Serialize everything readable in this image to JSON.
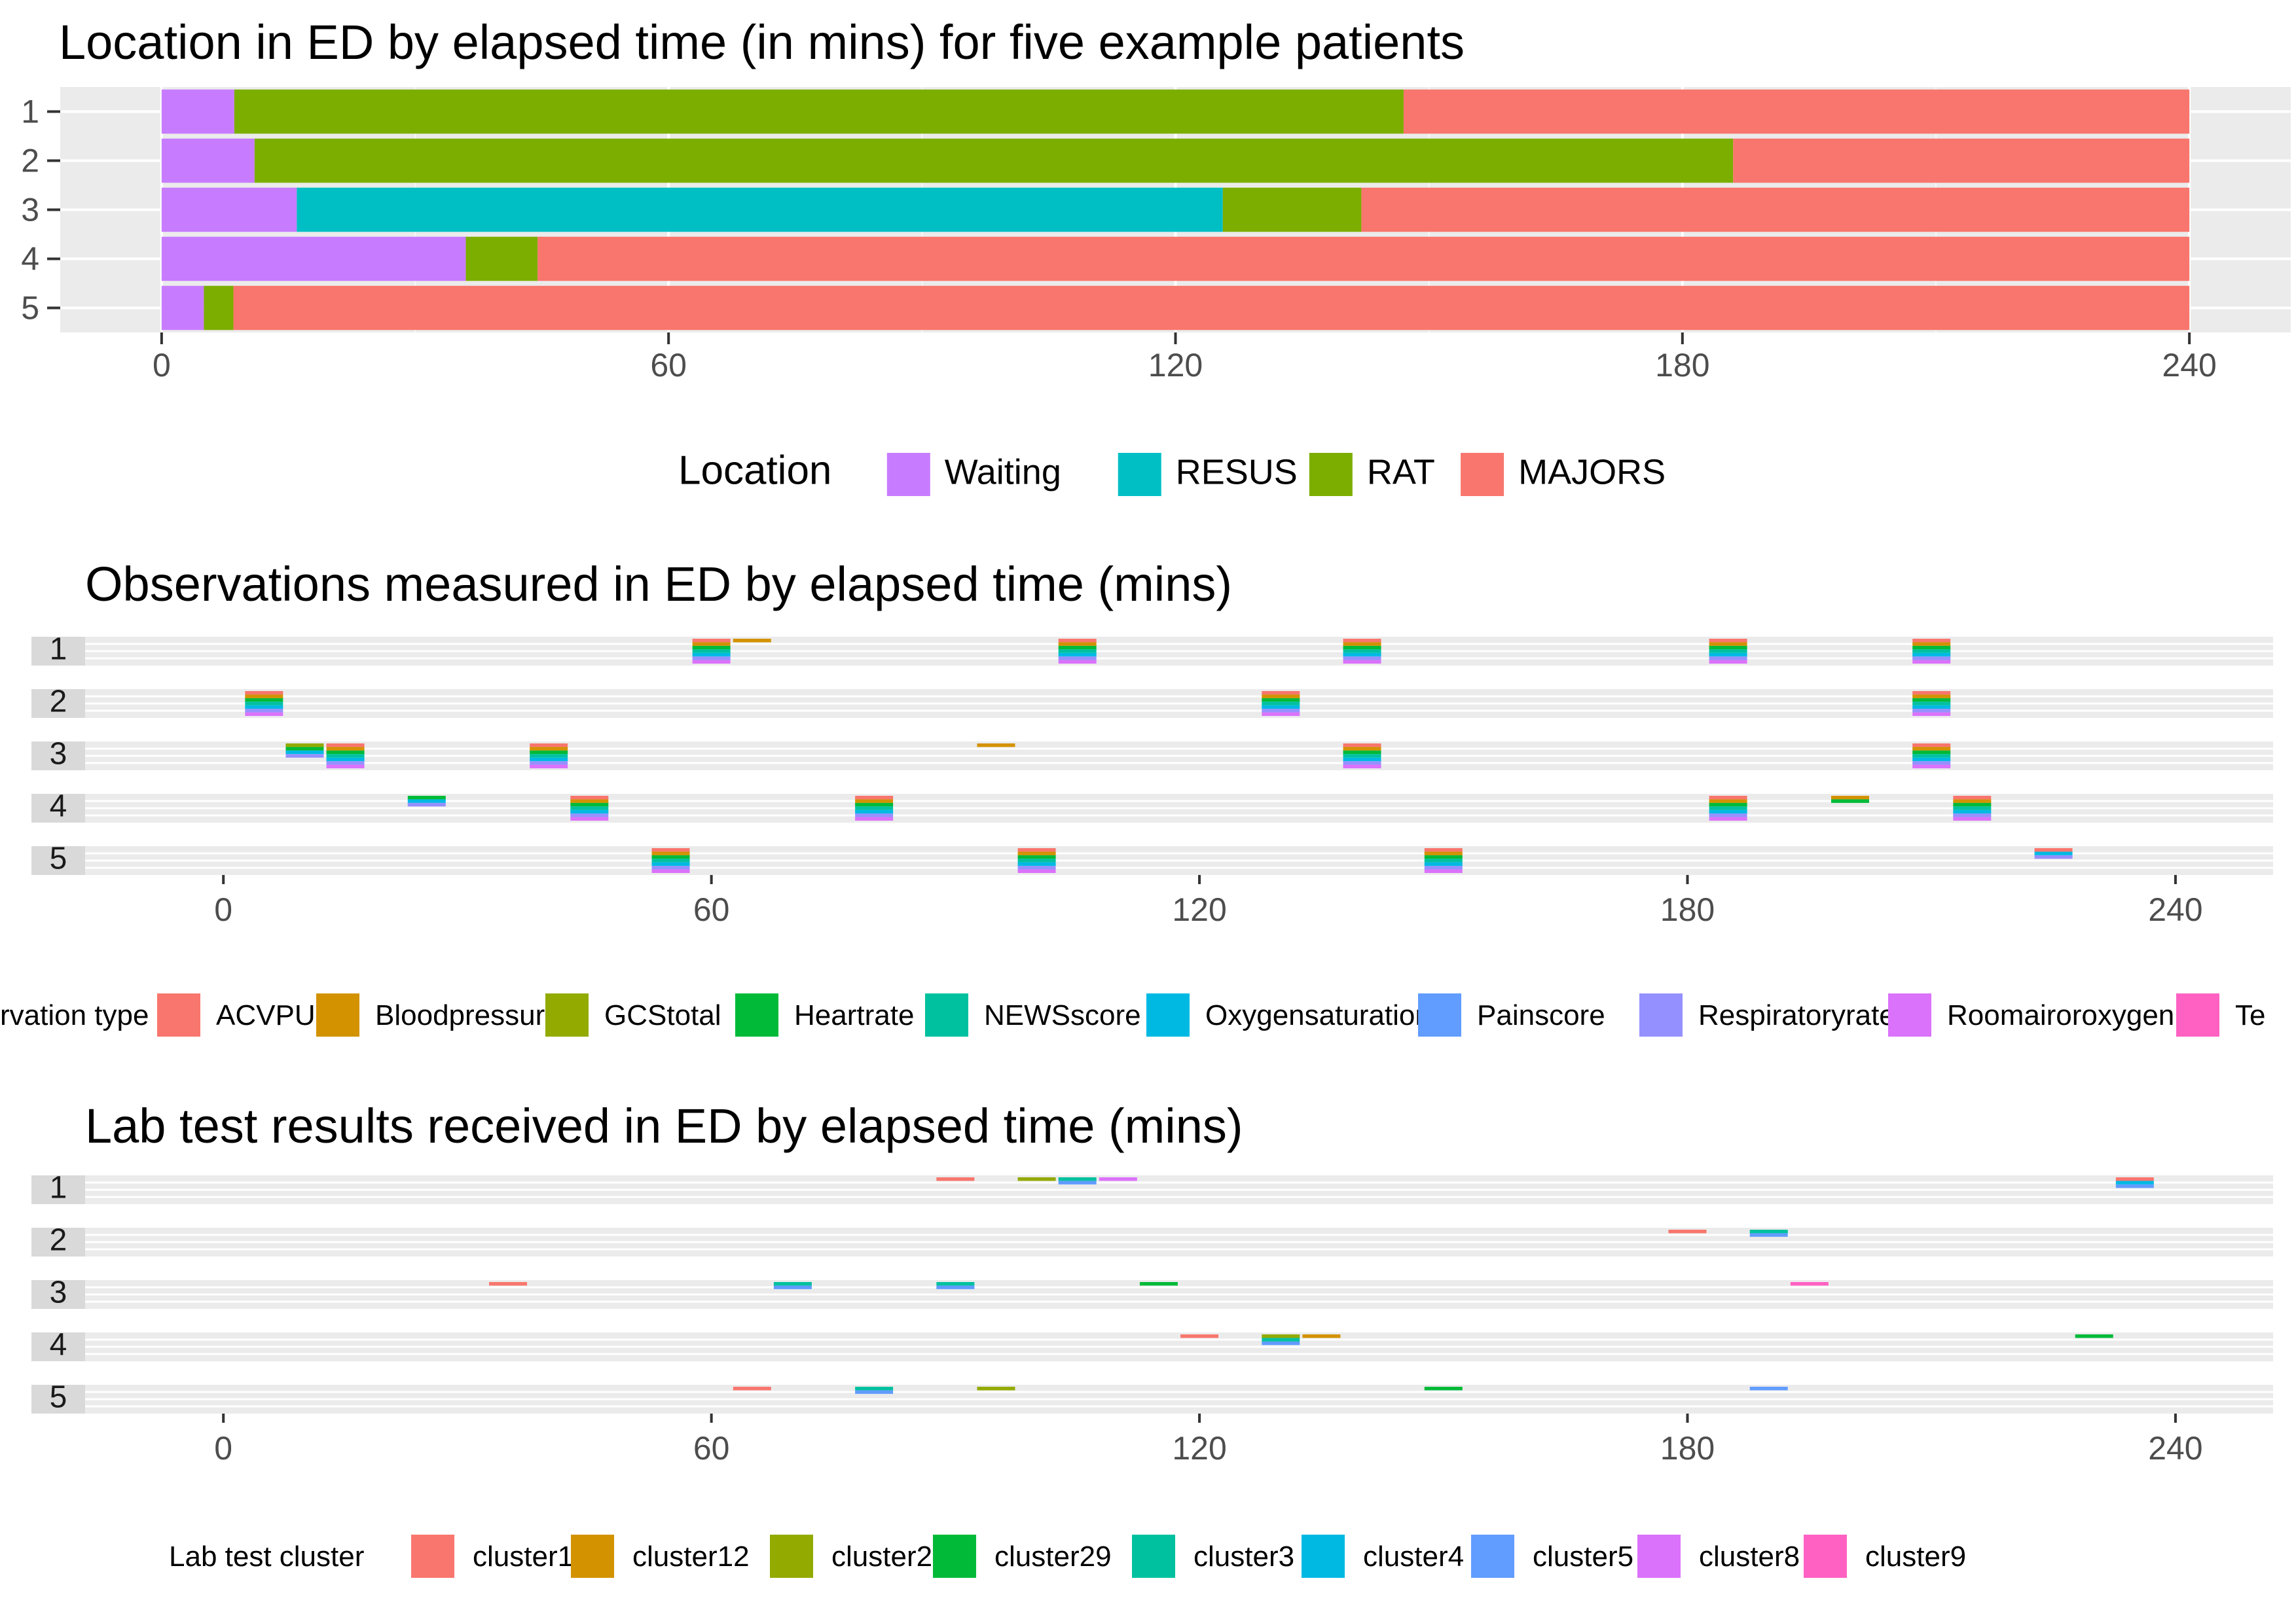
{
  "chart_data": [
    {
      "type": "bar",
      "subtype": "horizontal-stacked-timeline",
      "title": "Location in ED by elapsed time (in mins) for five example patients",
      "xlabel": "",
      "ylabel": "",
      "xlim": [
        -12,
        252
      ],
      "xticks": [
        0,
        60,
        120,
        180,
        240
      ],
      "categories": [
        "1",
        "2",
        "3",
        "4",
        "5"
      ],
      "legend": {
        "title": "Location",
        "position": "bottom",
        "items": [
          {
            "name": "Waiting",
            "color": "#C77CFF"
          },
          {
            "name": "RESUS",
            "color": "#00BFC4"
          },
          {
            "name": "RAT",
            "color": "#7CAE00"
          },
          {
            "name": "MAJORS",
            "color": "#F8766D"
          }
        ]
      },
      "patients": [
        {
          "id": "1",
          "segments": [
            {
              "location": "Waiting",
              "start": 0,
              "end": 8.6
            },
            {
              "location": "RAT",
              "start": 8.6,
              "end": 147
            },
            {
              "location": "MAJORS",
              "start": 147,
              "end": 240
            }
          ]
        },
        {
          "id": "2",
          "segments": [
            {
              "location": "Waiting",
              "start": 0,
              "end": 11
            },
            {
              "location": "RAT",
              "start": 11,
              "end": 186
            },
            {
              "location": "MAJORS",
              "start": 186,
              "end": 240
            }
          ]
        },
        {
          "id": "3",
          "segments": [
            {
              "location": "Waiting",
              "start": 0,
              "end": 16
            },
            {
              "location": "RESUS",
              "start": 16,
              "end": 125.6
            },
            {
              "location": "RAT",
              "start": 125.6,
              "end": 142
            },
            {
              "location": "MAJORS",
              "start": 142,
              "end": 240
            }
          ]
        },
        {
          "id": "4",
          "segments": [
            {
              "location": "Waiting",
              "start": 0,
              "end": 36
            },
            {
              "location": "RAT",
              "start": 36,
              "end": 44.5
            },
            {
              "location": "MAJORS",
              "start": 44.5,
              "end": 240
            }
          ]
        },
        {
          "id": "5",
          "segments": [
            {
              "location": "Waiting",
              "start": 0,
              "end": 5
            },
            {
              "location": "RAT",
              "start": 5,
              "end": 8.5
            },
            {
              "location": "MAJORS",
              "start": 8.5,
              "end": 240
            }
          ]
        }
      ]
    },
    {
      "type": "scatter",
      "subtype": "faceted-stacked-event-tiles",
      "title": "Observations measured in ED by elapsed time (mins)",
      "xlabel": "",
      "ylabel": "",
      "xlim": [
        -17,
        252
      ],
      "xticks": [
        0,
        60,
        120,
        180,
        240
      ],
      "facets": [
        "1",
        "2",
        "3",
        "4",
        "5"
      ],
      "legend": {
        "title": "Observation type",
        "title_visible_text": "rvation type",
        "position": "bottom",
        "items": [
          {
            "name": "ACVPU",
            "color": "#F8766D"
          },
          {
            "name": "Bloodpressure",
            "color": "#D39200"
          },
          {
            "name": "GCStotal",
            "color": "#93AA00"
          },
          {
            "name": "Heartrate",
            "color": "#00BA38"
          },
          {
            "name": "NEWSscore",
            "color": "#00C19F"
          },
          {
            "name": "Oxygensaturation",
            "color": "#00B9E3"
          },
          {
            "name": "Painscore",
            "color": "#619CFF"
          },
          {
            "name": "Respiratoryrate",
            "color": "#9590FF"
          },
          {
            "name": "Roomairoroxygen",
            "color": "#DB72FB"
          },
          {
            "name": "Te",
            "color": "#FF61C3"
          }
        ]
      },
      "events": [
        {
          "patient": "1",
          "time": 60,
          "types": [
            "ACVPU",
            "Bloodpressure",
            "Heartrate",
            "NEWSscore",
            "Oxygensaturation",
            "Respiratoryrate",
            "Roomairoroxygen"
          ]
        },
        {
          "patient": "1",
          "time": 65,
          "types": [
            "Bloodpressure"
          ]
        },
        {
          "patient": "1",
          "time": 105,
          "types": [
            "ACVPU",
            "Bloodpressure",
            "Heartrate",
            "NEWSscore",
            "Oxygensaturation",
            "Respiratoryrate",
            "Roomairoroxygen"
          ]
        },
        {
          "patient": "1",
          "time": 140,
          "types": [
            "ACVPU",
            "Bloodpressure",
            "Heartrate",
            "NEWSscore",
            "Oxygensaturation",
            "Respiratoryrate",
            "Roomairoroxygen"
          ]
        },
        {
          "patient": "1",
          "time": 185,
          "types": [
            "ACVPU",
            "Bloodpressure",
            "Heartrate",
            "NEWSscore",
            "Oxygensaturation",
            "Respiratoryrate",
            "Roomairoroxygen"
          ]
        },
        {
          "patient": "1",
          "time": 210,
          "types": [
            "ACVPU",
            "Bloodpressure",
            "Heartrate",
            "NEWSscore",
            "Oxygensaturation",
            "Respiratoryrate",
            "Roomairoroxygen"
          ]
        },
        {
          "patient": "2",
          "time": 5,
          "types": [
            "ACVPU",
            "Bloodpressure",
            "Heartrate",
            "NEWSscore",
            "Oxygensaturation",
            "Respiratoryrate",
            "Roomairoroxygen"
          ]
        },
        {
          "patient": "2",
          "time": 130,
          "types": [
            "ACVPU",
            "Bloodpressure",
            "Heartrate",
            "NEWSscore",
            "Oxygensaturation",
            "Respiratoryrate",
            "Roomairoroxygen"
          ]
        },
        {
          "patient": "2",
          "time": 210,
          "types": [
            "ACVPU",
            "Bloodpressure",
            "Heartrate",
            "NEWSscore",
            "Oxygensaturation",
            "Respiratoryrate",
            "Roomairoroxygen"
          ]
        },
        {
          "patient": "3",
          "time": 10,
          "types": [
            "GCStotal",
            "Heartrate",
            "Oxygensaturation",
            "Respiratoryrate"
          ]
        },
        {
          "patient": "3",
          "time": 15,
          "types": [
            "ACVPU",
            "Bloodpressure",
            "Heartrate",
            "NEWSscore",
            "Oxygensaturation",
            "Respiratoryrate",
            "Roomairoroxygen"
          ]
        },
        {
          "patient": "3",
          "time": 40,
          "types": [
            "ACVPU",
            "Bloodpressure",
            "Heartrate",
            "NEWSscore",
            "Oxygensaturation",
            "Respiratoryrate",
            "Roomairoroxygen"
          ]
        },
        {
          "patient": "3",
          "time": 95,
          "types": [
            "Bloodpressure"
          ]
        },
        {
          "patient": "3",
          "time": 140,
          "types": [
            "ACVPU",
            "Bloodpressure",
            "Heartrate",
            "NEWSscore",
            "Oxygensaturation",
            "Respiratoryrate",
            "Roomairoroxygen"
          ]
        },
        {
          "patient": "3",
          "time": 210,
          "types": [
            "ACVPU",
            "Bloodpressure",
            "Heartrate",
            "NEWSscore",
            "Oxygensaturation",
            "Respiratoryrate",
            "Roomairoroxygen"
          ]
        },
        {
          "patient": "4",
          "time": 25,
          "types": [
            "Heartrate",
            "Oxygensaturation",
            "Respiratoryrate"
          ]
        },
        {
          "patient": "4",
          "time": 45,
          "types": [
            "ACVPU",
            "Bloodpressure",
            "Heartrate",
            "NEWSscore",
            "Oxygensaturation",
            "Respiratoryrate",
            "Roomairoroxygen"
          ]
        },
        {
          "patient": "4",
          "time": 80,
          "types": [
            "ACVPU",
            "Bloodpressure",
            "Heartrate",
            "NEWSscore",
            "Oxygensaturation",
            "Respiratoryrate",
            "Roomairoroxygen"
          ]
        },
        {
          "patient": "4",
          "time": 185,
          "types": [
            "ACVPU",
            "Bloodpressure",
            "Heartrate",
            "NEWSscore",
            "Oxygensaturation",
            "Respiratoryrate",
            "Roomairoroxygen"
          ]
        },
        {
          "patient": "4",
          "time": 200,
          "types": [
            "Bloodpressure",
            "Heartrate"
          ]
        },
        {
          "patient": "4",
          "time": 215,
          "types": [
            "ACVPU",
            "Bloodpressure",
            "Heartrate",
            "NEWSscore",
            "Oxygensaturation",
            "Respiratoryrate",
            "Roomairoroxygen"
          ]
        },
        {
          "patient": "5",
          "time": 55,
          "types": [
            "ACVPU",
            "Bloodpressure",
            "Heartrate",
            "NEWSscore",
            "Oxygensaturation",
            "Respiratoryrate",
            "Roomairoroxygen"
          ]
        },
        {
          "patient": "5",
          "time": 100,
          "types": [
            "ACVPU",
            "Bloodpressure",
            "Heartrate",
            "NEWSscore",
            "Oxygensaturation",
            "Respiratoryrate",
            "Roomairoroxygen"
          ]
        },
        {
          "patient": "5",
          "time": 150,
          "types": [
            "ACVPU",
            "Bloodpressure",
            "Heartrate",
            "NEWSscore",
            "Oxygensaturation",
            "Respiratoryrate",
            "Roomairoroxygen"
          ]
        },
        {
          "patient": "5",
          "time": 225,
          "types": [
            "ACVPU",
            "Oxygensaturation",
            "Respiratoryrate"
          ]
        }
      ]
    },
    {
      "type": "scatter",
      "subtype": "faceted-stacked-event-tiles",
      "title": "Lab test results received in ED by elapsed time (mins)",
      "xlabel": "",
      "ylabel": "",
      "xlim": [
        -17,
        252
      ],
      "xticks": [
        0,
        60,
        120,
        180,
        240
      ],
      "facets": [
        "1",
        "2",
        "3",
        "4",
        "5"
      ],
      "legend": {
        "title": "Lab test cluster",
        "position": "bottom",
        "items": [
          {
            "name": "cluster1",
            "color": "#F8766D"
          },
          {
            "name": "cluster12",
            "color": "#D39200"
          },
          {
            "name": "cluster2",
            "color": "#93AA00"
          },
          {
            "name": "cluster29",
            "color": "#00BA38"
          },
          {
            "name": "cluster3",
            "color": "#00C19F"
          },
          {
            "name": "cluster4",
            "color": "#00B9E3"
          },
          {
            "name": "cluster5",
            "color": "#619CFF"
          },
          {
            "name": "cluster8",
            "color": "#DB72FB"
          },
          {
            "name": "cluster9",
            "color": "#FF61C3"
          }
        ]
      },
      "events": [
        {
          "patient": "1",
          "time": 90,
          "types": [
            "cluster1"
          ]
        },
        {
          "patient": "1",
          "time": 100,
          "types": [
            "cluster2"
          ]
        },
        {
          "patient": "1",
          "time": 105,
          "types": [
            "cluster3",
            "cluster5"
          ]
        },
        {
          "patient": "1",
          "time": 110,
          "types": [
            "cluster8"
          ]
        },
        {
          "patient": "1",
          "time": 235,
          "types": [
            "cluster1",
            "cluster4",
            "cluster5"
          ]
        },
        {
          "patient": "2",
          "time": 180,
          "types": [
            "cluster1"
          ]
        },
        {
          "patient": "2",
          "time": 190,
          "types": [
            "cluster3",
            "cluster5"
          ]
        },
        {
          "patient": "3",
          "time": 35,
          "types": [
            "cluster1"
          ]
        },
        {
          "patient": "3",
          "time": 70,
          "types": [
            "cluster3",
            "cluster5"
          ]
        },
        {
          "patient": "3",
          "time": 90,
          "types": [
            "cluster3",
            "cluster5"
          ]
        },
        {
          "patient": "3",
          "time": 115,
          "types": [
            "cluster29"
          ]
        },
        {
          "patient": "3",
          "time": 195,
          "types": [
            "cluster9"
          ]
        },
        {
          "patient": "4",
          "time": 120,
          "types": [
            "cluster1"
          ]
        },
        {
          "patient": "4",
          "time": 130,
          "types": [
            "cluster2",
            "cluster3",
            "cluster5"
          ]
        },
        {
          "patient": "4",
          "time": 135,
          "types": [
            "cluster12"
          ]
        },
        {
          "patient": "4",
          "time": 230,
          "types": [
            "cluster29"
          ]
        },
        {
          "patient": "5",
          "time": 65,
          "types": [
            "cluster1"
          ]
        },
        {
          "patient": "5",
          "time": 80,
          "types": [
            "cluster3",
            "cluster5"
          ]
        },
        {
          "patient": "5",
          "time": 95,
          "types": [
            "cluster2"
          ]
        },
        {
          "patient": "5",
          "time": 150,
          "types": [
            "cluster29"
          ]
        },
        {
          "patient": "5",
          "time": 190,
          "types": [
            "cluster5"
          ]
        }
      ]
    }
  ]
}
